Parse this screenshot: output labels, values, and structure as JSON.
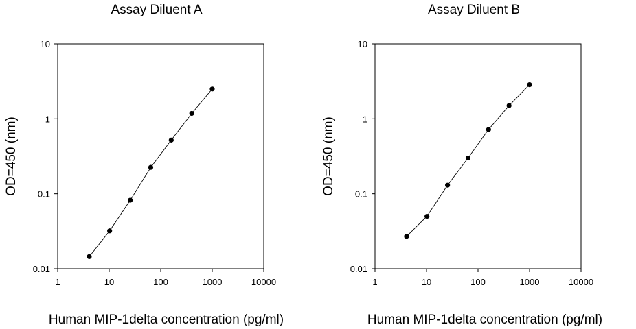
{
  "chart_data": [
    {
      "type": "scatter",
      "title": "Assay Diluent A",
      "xlabel": "Human MIP-1delta concentration (pg/ml)",
      "ylabel": "OD=450 (nm)",
      "x_scale": "log",
      "y_scale": "log",
      "xlim": [
        1,
        10000
      ],
      "ylim": [
        0.01,
        10
      ],
      "x_ticks": [
        "1",
        "10",
        "100",
        "1000",
        "10000"
      ],
      "y_ticks": [
        "0.01",
        "0.1",
        "1",
        "10"
      ],
      "grid": false,
      "legend": "none",
      "fit_line": true,
      "series": [
        {
          "x": [
            4.1,
            10.2,
            25.6,
            64,
            160,
            400,
            1000
          ],
          "y": [
            0.0145,
            0.032,
            0.082,
            0.225,
            0.52,
            1.18,
            2.5
          ]
        }
      ]
    },
    {
      "type": "scatter",
      "title": "Assay Diluent B",
      "xlabel": "Human MIP-1delta concentration (pg/ml)",
      "ylabel": "OD=450 (nm)",
      "x_scale": "log",
      "y_scale": "log",
      "xlim": [
        1,
        10000
      ],
      "ylim": [
        0.01,
        10
      ],
      "x_ticks": [
        "1",
        "10",
        "100",
        "1000",
        "10000"
      ],
      "y_ticks": [
        "0.01",
        "0.1",
        "1",
        "10"
      ],
      "grid": false,
      "legend": "none",
      "fit_line": true,
      "series": [
        {
          "x": [
            4.1,
            10.2,
            25.6,
            64,
            160,
            400,
            1000
          ],
          "y": [
            0.027,
            0.05,
            0.13,
            0.3,
            0.72,
            1.5,
            2.85
          ]
        }
      ]
    }
  ]
}
